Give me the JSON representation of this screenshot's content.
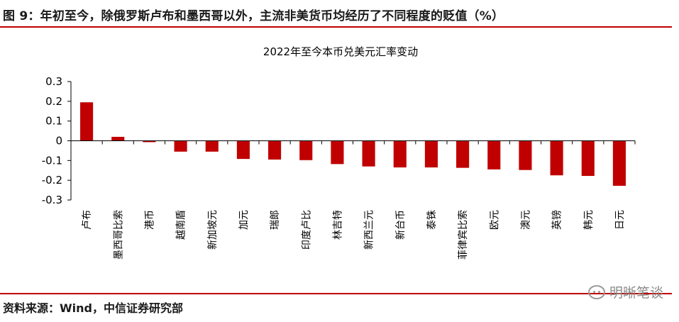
{
  "figure_title": "图 9：年初至今，除俄罗斯卢布和墨西哥以外，主流非美货币均经历了不同程度的贬值（%）",
  "source": "资料来源：Wind，中信证券研究部",
  "watermark": "明晰笔谈",
  "colors": {
    "bar": "#c00000",
    "rule": "#c00000"
  },
  "chart_data": {
    "type": "bar",
    "title": "2022年至今本币兑美元汇率变动",
    "xlabel": "",
    "ylabel": "",
    "categories": [
      "卢布",
      "墨西哥比索",
      "港币",
      "越南盾",
      "新加坡元",
      "加元",
      "瑞郎",
      "印度卢比",
      "林吉特",
      "新西兰元",
      "新台币",
      "泰铢",
      "菲律宾比索",
      "欧元",
      "澳元",
      "英镑",
      "韩元",
      "日元"
    ],
    "values": [
      0.195,
      0.02,
      -0.007,
      -0.055,
      -0.055,
      -0.092,
      -0.095,
      -0.098,
      -0.118,
      -0.13,
      -0.135,
      -0.135,
      -0.137,
      -0.145,
      -0.148,
      -0.175,
      -0.178,
      -0.228
    ],
    "ylim": [
      -0.3,
      0.3
    ],
    "yticks": [
      "0.3",
      "0.2",
      "0.1",
      "0",
      "-0.1",
      "-0.2",
      "-0.3"
    ],
    "ytick_values": [
      0.3,
      0.2,
      0.1,
      0,
      -0.1,
      -0.2,
      -0.3
    ],
    "grid": false,
    "legend": "none"
  }
}
